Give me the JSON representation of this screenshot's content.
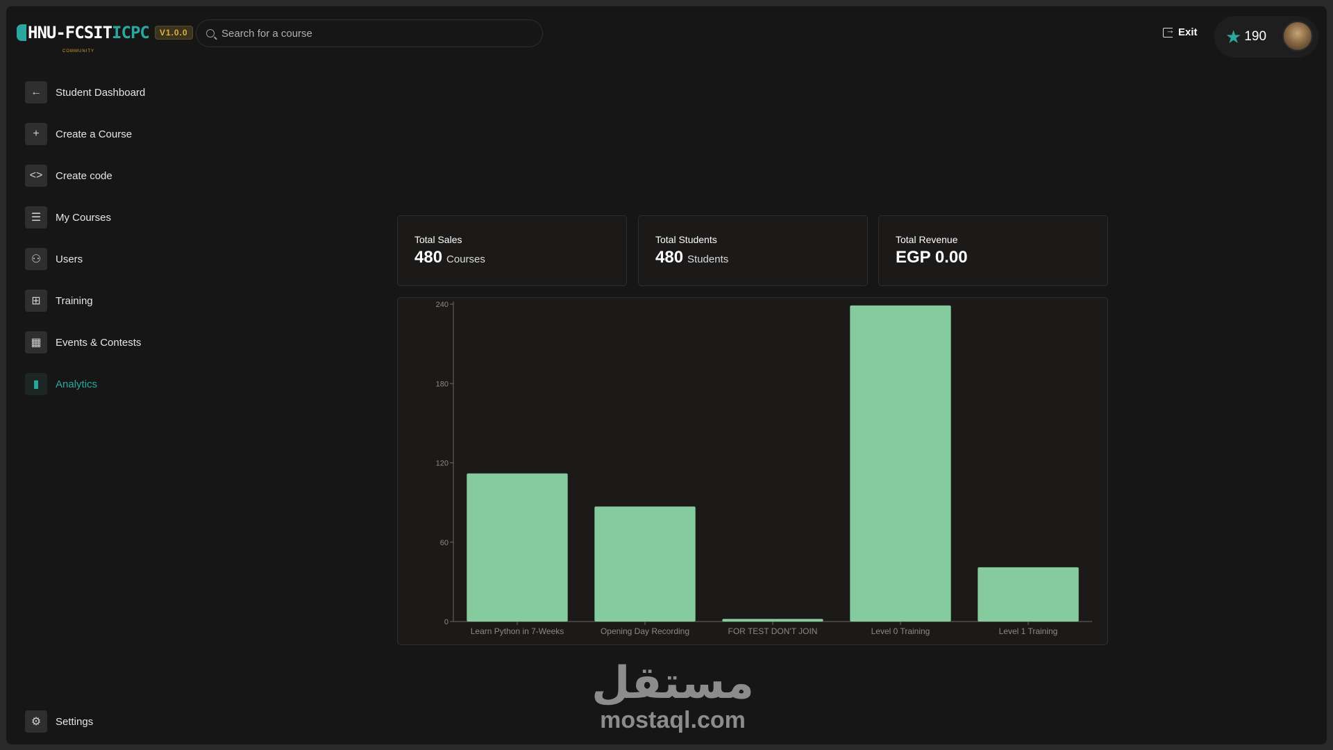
{
  "header": {
    "logo_main": "HNU-FCSIT",
    "logo_accent": "ICPC",
    "logo_sub": "COMMUNITY",
    "version": "V1.0.0",
    "search_placeholder": "Search for a course",
    "exit_label": "Exit",
    "stars": "190"
  },
  "sidebar": {
    "items": [
      {
        "label": "Student Dashboard",
        "icon": "arrow-left-icon"
      },
      {
        "label": "Create a Course",
        "icon": "plus-icon"
      },
      {
        "label": "Create code",
        "icon": "code-icon"
      },
      {
        "label": "My Courses",
        "icon": "list-icon"
      },
      {
        "label": "Users",
        "icon": "users-icon"
      },
      {
        "label": "Training",
        "icon": "blocks-icon"
      },
      {
        "label": "Events & Contests",
        "icon": "calendar-icon"
      },
      {
        "label": "Analytics",
        "icon": "bar-chart-icon",
        "active": true
      }
    ],
    "settings_label": "Settings"
  },
  "stats": [
    {
      "title": "Total Sales",
      "value": "480",
      "unit": "Courses"
    },
    {
      "title": "Total Students",
      "value": "480",
      "unit": "Students"
    },
    {
      "title": "Total Revenue",
      "value": "EGP 0.00",
      "unit": ""
    }
  ],
  "chart_data": {
    "type": "bar",
    "categories": [
      "Learn Python in 7-Weeks",
      "Opening Day Recording",
      "FOR TEST DON'T JOIN",
      "Level 0 Training",
      "Level 1 Training"
    ],
    "values": [
      112,
      87,
      2,
      239,
      41
    ],
    "ylim": [
      0,
      240
    ],
    "yticks": [
      0,
      60,
      120,
      180,
      240
    ],
    "grid": false,
    "bar_color": "#86cb9d"
  },
  "watermark": {
    "arabic": "مستقل",
    "latin": "mostaql.com"
  },
  "colors": {
    "accent": "#2aa8a0",
    "background": "#161616",
    "card": "#1c1a18"
  }
}
